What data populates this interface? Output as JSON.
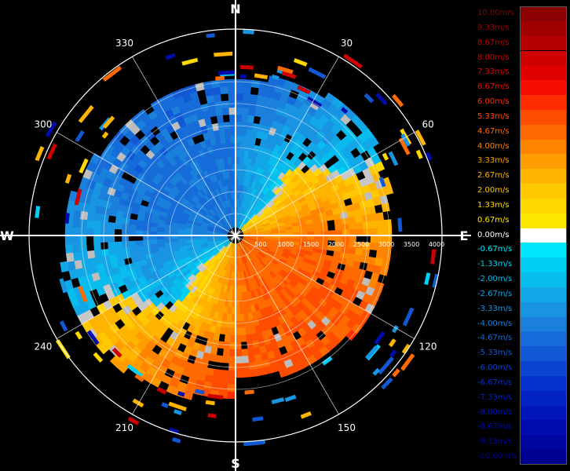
{
  "compass": {
    "north": "N",
    "south": "S",
    "east": "E",
    "west": "W"
  },
  "bearing_labels": [
    "30",
    "60",
    "120",
    "150",
    "210",
    "240",
    "300",
    "330"
  ],
  "range_labels": [
    "500",
    "1000",
    "1500",
    "2000",
    "2500",
    "3000",
    "3500",
    "4000"
  ],
  "legend": [
    {
      "label": "10.00m/s",
      "color": "#8b0000"
    },
    {
      "label": "9.33m/s",
      "color": "#a00000"
    },
    {
      "label": "8.67m/s",
      "color": "#b60000"
    },
    {
      "label": "8.00m/s",
      "color": "#cc0000"
    },
    {
      "label": "7.33m/s",
      "color": "#e00000"
    },
    {
      "label": "6.67m/s",
      "color": "#f40d00"
    },
    {
      "label": "6.00m/s",
      "color": "#ff2e00"
    },
    {
      "label": "5.33m/s",
      "color": "#ff4d00"
    },
    {
      "label": "4.67m/s",
      "color": "#ff6a00"
    },
    {
      "label": "4.00m/s",
      "color": "#ff8500"
    },
    {
      "label": "3.33m/s",
      "color": "#ff9d00"
    },
    {
      "label": "2.67m/s",
      "color": "#ffb400"
    },
    {
      "label": "2.00m/s",
      "color": "#ffc800"
    },
    {
      "label": "1.33m/s",
      "color": "#ffd800"
    },
    {
      "label": "0.67m/s",
      "color": "#ffe600"
    },
    {
      "label": "0.00m/s",
      "color": "#ffffff"
    },
    {
      "label": "-0.67m/s",
      "color": "#00e6ff"
    },
    {
      "label": "-1.33m/s",
      "color": "#00d0f4"
    },
    {
      "label": "-2.00m/s",
      "color": "#08bcee"
    },
    {
      "label": "-2.67m/s",
      "color": "#12a8e8"
    },
    {
      "label": "-3.33m/s",
      "color": "#1894e2"
    },
    {
      "label": "-4.00m/s",
      "color": "#1a80dc"
    },
    {
      "label": "-4.67m/s",
      "color": "#166cd8"
    },
    {
      "label": "-5.33m/s",
      "color": "#1058d4"
    },
    {
      "label": "-6.00m/s",
      "color": "#0a44d0"
    },
    {
      "label": "-6.67m/s",
      "color": "#0632cc"
    },
    {
      "label": "-7.33m/s",
      "color": "#0322c4"
    },
    {
      "label": "-8.00m/s",
      "color": "#0016ba"
    },
    {
      "label": "-8.67m/s",
      "color": "#000cae"
    },
    {
      "label": "-9.33m/s",
      "color": "#0006a0"
    },
    {
      "label": "-10.00m/s",
      "color": "#000090"
    }
  ]
}
